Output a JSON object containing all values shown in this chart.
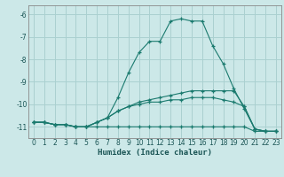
{
  "title": "",
  "xlabel": "Humidex (Indice chaleur)",
  "background_color": "#cce8e8",
  "grid_color": "#aad0d0",
  "line_color": "#1a7a6e",
  "xlim": [
    -0.5,
    23.5
  ],
  "ylim": [
    -11.5,
    -5.6
  ],
  "yticks": [
    -11,
    -10,
    -9,
    -8,
    -7,
    -6
  ],
  "xticks": [
    0,
    1,
    2,
    3,
    4,
    5,
    6,
    7,
    8,
    9,
    10,
    11,
    12,
    13,
    14,
    15,
    16,
    17,
    18,
    19,
    20,
    21,
    22,
    23
  ],
  "series": [
    {
      "x": [
        0,
        1,
        2,
        3,
        4,
        5,
        6,
        7,
        8,
        9,
        10,
        11,
        12,
        13,
        14,
        15,
        16,
        17,
        18,
        19,
        20,
        21,
        22,
        23
      ],
      "y": [
        -10.8,
        -10.8,
        -10.9,
        -10.9,
        -11.0,
        -11.0,
        -10.8,
        -10.6,
        -9.7,
        -8.6,
        -7.7,
        -7.2,
        -7.2,
        -6.3,
        -6.2,
        -6.3,
        -6.3,
        -7.4,
        -8.2,
        -9.3,
        -10.2,
        -11.1,
        -11.2,
        -11.2
      ]
    },
    {
      "x": [
        0,
        1,
        2,
        3,
        4,
        5,
        6,
        7,
        8,
        9,
        10,
        11,
        12,
        13,
        14,
        15,
        16,
        17,
        18,
        19,
        20,
        21,
        22,
        23
      ],
      "y": [
        -10.8,
        -10.8,
        -10.9,
        -10.9,
        -11.0,
        -11.0,
        -10.8,
        -10.6,
        -10.3,
        -10.1,
        -9.9,
        -9.8,
        -9.7,
        -9.6,
        -9.5,
        -9.4,
        -9.4,
        -9.4,
        -9.4,
        -9.4,
        -10.1,
        -11.1,
        -11.2,
        -11.2
      ]
    },
    {
      "x": [
        0,
        1,
        2,
        3,
        4,
        5,
        6,
        7,
        8,
        9,
        10,
        11,
        12,
        13,
        14,
        15,
        16,
        17,
        18,
        19,
        20,
        21,
        22,
        23
      ],
      "y": [
        -10.8,
        -10.8,
        -10.9,
        -10.9,
        -11.0,
        -11.0,
        -10.8,
        -10.6,
        -10.3,
        -10.1,
        -10.0,
        -9.9,
        -9.9,
        -9.8,
        -9.8,
        -9.7,
        -9.7,
        -9.7,
        -9.8,
        -9.9,
        -10.1,
        -11.1,
        -11.2,
        -11.2
      ]
    },
    {
      "x": [
        0,
        1,
        2,
        3,
        4,
        5,
        6,
        7,
        8,
        9,
        10,
        11,
        12,
        13,
        14,
        15,
        16,
        17,
        18,
        19,
        20,
        21,
        22,
        23
      ],
      "y": [
        -10.8,
        -10.8,
        -10.9,
        -10.9,
        -11.0,
        -11.0,
        -11.0,
        -11.0,
        -11.0,
        -11.0,
        -11.0,
        -11.0,
        -11.0,
        -11.0,
        -11.0,
        -11.0,
        -11.0,
        -11.0,
        -11.0,
        -11.0,
        -11.0,
        -11.2,
        -11.2,
        -11.2
      ]
    }
  ]
}
